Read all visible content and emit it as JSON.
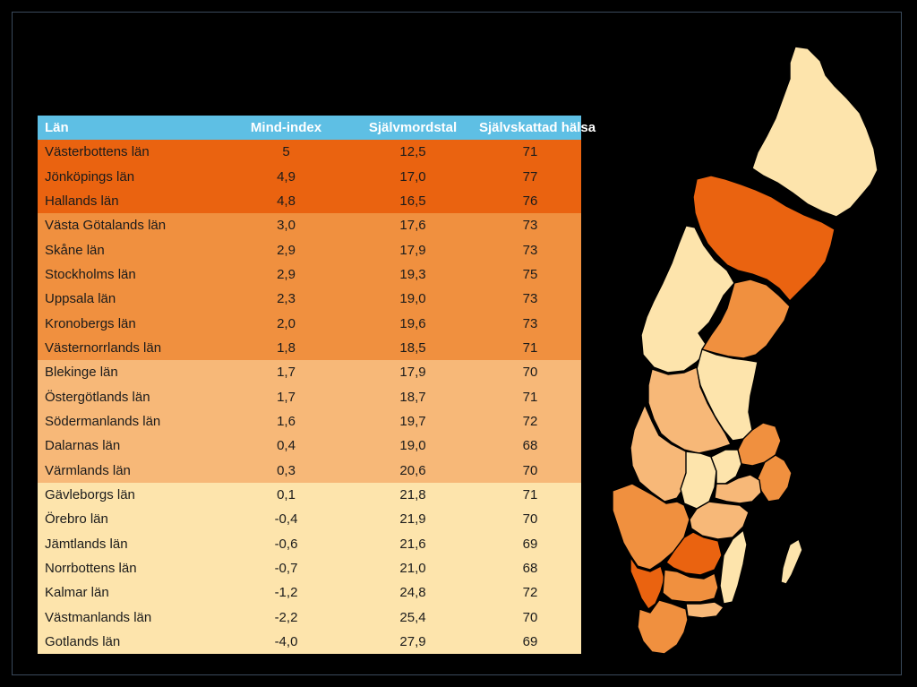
{
  "table": {
    "headers": [
      "Län",
      "Mind-index",
      "Självmordstal",
      "Självskattad hälsa"
    ],
    "rows": [
      {
        "lan": "Västerbottens län",
        "mind_index": "5",
        "sjalvmordstal": "12,5",
        "halsa": "71",
        "tier": 1
      },
      {
        "lan": "Jönköpings län",
        "mind_index": "4,9",
        "sjalvmordstal": "17,0",
        "halsa": "77",
        "tier": 1
      },
      {
        "lan": "Hallands län",
        "mind_index": "4,8",
        "sjalvmordstal": "16,5",
        "halsa": "76",
        "tier": 1
      },
      {
        "lan": "Västa Götalands län",
        "mind_index": "3,0",
        "sjalvmordstal": "17,6",
        "halsa": "73",
        "tier": 2
      },
      {
        "lan": "Skåne län",
        "mind_index": "2,9",
        "sjalvmordstal": "17,9",
        "halsa": "73",
        "tier": 2
      },
      {
        "lan": "Stockholms län",
        "mind_index": "2,9",
        "sjalvmordstal": "19,3",
        "halsa": "75",
        "tier": 2
      },
      {
        "lan": "Uppsala län",
        "mind_index": "2,3",
        "sjalvmordstal": "19,0",
        "halsa": "73",
        "tier": 2
      },
      {
        "lan": "Kronobergs län",
        "mind_index": "2,0",
        "sjalvmordstal": "19,6",
        "halsa": "73",
        "tier": 2
      },
      {
        "lan": "Västernorrlands län",
        "mind_index": "1,8",
        "sjalvmordstal": "18,5",
        "halsa": "71",
        "tier": 2
      },
      {
        "lan": "Blekinge län",
        "mind_index": "1,7",
        "sjalvmordstal": "17,9",
        "halsa": "70",
        "tier": 3
      },
      {
        "lan": "Östergötlands län",
        "mind_index": "1,7",
        "sjalvmordstal": "18,7",
        "halsa": "71",
        "tier": 3
      },
      {
        "lan": "Södermanlands län",
        "mind_index": "1,6",
        "sjalvmordstal": "19,7",
        "halsa": "72",
        "tier": 3
      },
      {
        "lan": "Dalarnas län",
        "mind_index": "0,4",
        "sjalvmordstal": "19,0",
        "halsa": "68",
        "tier": 3
      },
      {
        "lan": "Värmlands län",
        "mind_index": "0,3",
        "sjalvmordstal": "20,6",
        "halsa": "70",
        "tier": 3
      },
      {
        "lan": "Gävleborgs län",
        "mind_index": "0,1",
        "sjalvmordstal": "21,8",
        "halsa": "71",
        "tier": 4
      },
      {
        "lan": "Örebro län",
        "mind_index": "-0,4",
        "sjalvmordstal": "21,9",
        "halsa": "70",
        "tier": 4
      },
      {
        "lan": "Jämtlands län",
        "mind_index": "-0,6",
        "sjalvmordstal": "21,6",
        "halsa": "69",
        "tier": 4
      },
      {
        "lan": "Norrbottens län",
        "mind_index": "-0,7",
        "sjalvmordstal": "21,0",
        "halsa": "68",
        "tier": 4
      },
      {
        "lan": "Kalmar län",
        "mind_index": "-1,2",
        "sjalvmordstal": "24,8",
        "halsa": "72",
        "tier": 4
      },
      {
        "lan": "Västmanlands län",
        "mind_index": "-2,2",
        "sjalvmordstal": "25,4",
        "halsa": "70",
        "tier": 4
      },
      {
        "lan": "Gotlands län",
        "mind_index": "-4,0",
        "sjalvmordstal": "27,9",
        "halsa": "69",
        "tier": 4
      }
    ]
  },
  "colors": {
    "header": "#5ebfe4",
    "tier_1": "#ea6310",
    "tier_2": "#f0903f",
    "tier_3": "#f7b878",
    "tier_4": "#fde4ac",
    "background": "#000000"
  },
  "map": {
    "regions": [
      {
        "name": "norrbotten",
        "tier": 4
      },
      {
        "name": "vasterbotten",
        "tier": 1
      },
      {
        "name": "jamtland",
        "tier": 4
      },
      {
        "name": "vasternorrland",
        "tier": 2
      },
      {
        "name": "gavleborg",
        "tier": 4
      },
      {
        "name": "dalarna",
        "tier": 3
      },
      {
        "name": "varmland",
        "tier": 3
      },
      {
        "name": "orebro",
        "tier": 4
      },
      {
        "name": "vastmanland",
        "tier": 4
      },
      {
        "name": "uppsala",
        "tier": 2
      },
      {
        "name": "stockholm",
        "tier": 2
      },
      {
        "name": "sodermanland",
        "tier": 3
      },
      {
        "name": "vastra-gotaland",
        "tier": 2
      },
      {
        "name": "ostergotland",
        "tier": 3
      },
      {
        "name": "jonkoping",
        "tier": 1
      },
      {
        "name": "kalmar",
        "tier": 4
      },
      {
        "name": "halland",
        "tier": 1
      },
      {
        "name": "kronoberg",
        "tier": 2
      },
      {
        "name": "blekinge",
        "tier": 3
      },
      {
        "name": "skane",
        "tier": 2
      },
      {
        "name": "gotland",
        "tier": 4
      }
    ]
  }
}
